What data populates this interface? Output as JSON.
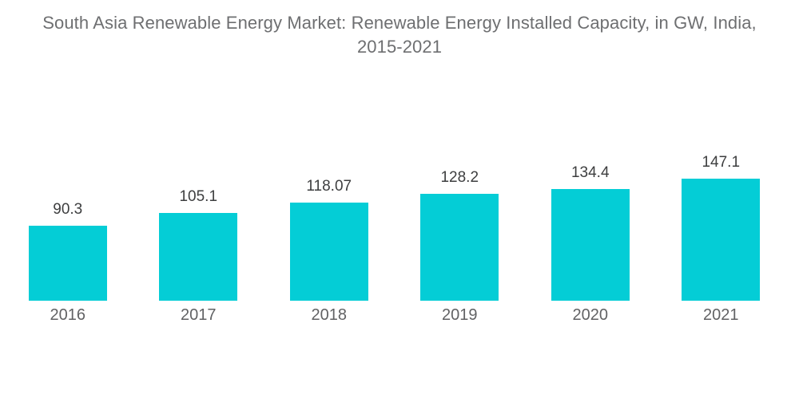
{
  "header": {
    "line1": "South Asia Renewable Energy Market: Renewable Energy Installed Capacity, in GW, India,",
    "line2": "2015-2021"
  },
  "chart_data": {
    "type": "bar",
    "title": "South Asia Renewable Energy Market: Renewable Energy Installed Capacity, in GW, India, 2015-2021",
    "categories": [
      "2016",
      "2017",
      "2018",
      "2019",
      "2020",
      "2021"
    ],
    "values": [
      90.3,
      105.1,
      118.07,
      128.2,
      134.4,
      147.1
    ],
    "value_labels": [
      "90.3",
      "105.1",
      "118.07",
      "128.2",
      "134.4",
      "147.1"
    ],
    "unit": "GW",
    "xlabel": "",
    "ylabel": "",
    "ylim": [
      0,
      160
    ],
    "grid": false,
    "axes_visible": false,
    "legend_position": "none",
    "bar_color": "#04cdd6",
    "title_color": "#6e6f71",
    "value_label_color": "#3d3e3f",
    "axis_label_color": "#616264",
    "background_color": "#ffffff"
  }
}
